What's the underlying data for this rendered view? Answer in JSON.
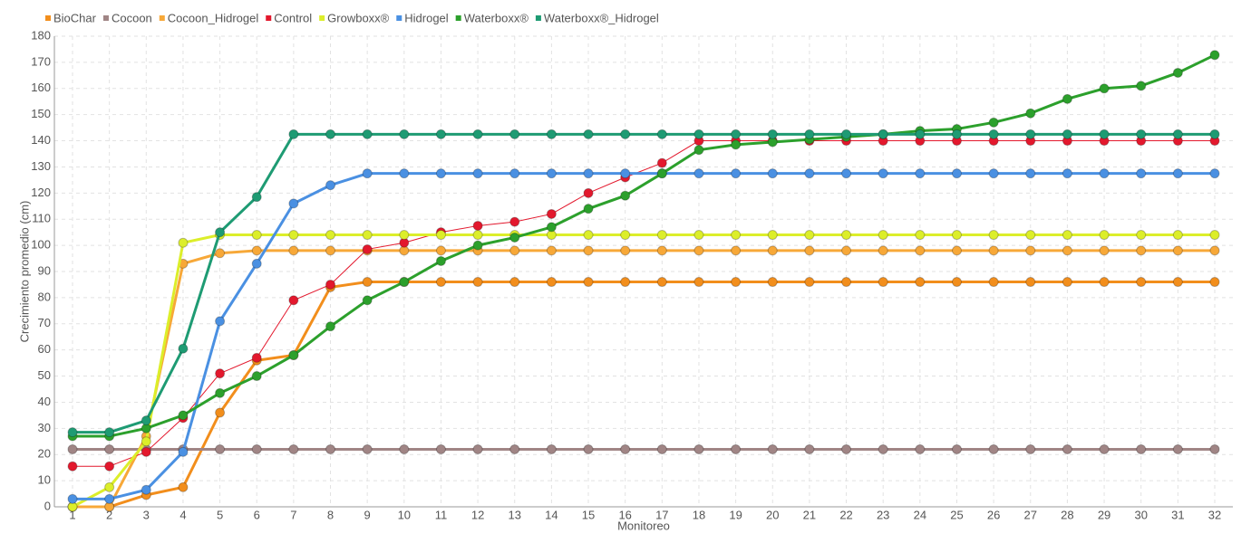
{
  "chart_data": {
    "type": "line",
    "x_label": "Monitoreo",
    "y_label": "Crecimiento promedio (cm)",
    "categories": [
      "1",
      "2",
      "3",
      "4",
      "5",
      "6",
      "7",
      "8",
      "9",
      "10",
      "11",
      "12",
      "13",
      "14",
      "15",
      "16",
      "17",
      "18",
      "19",
      "20",
      "21",
      "22",
      "23",
      "24",
      "25",
      "26",
      "27",
      "28",
      "29",
      "30",
      "31",
      "32"
    ],
    "ylim": [
      0,
      180
    ],
    "yticks": [
      0,
      10,
      20,
      30,
      40,
      50,
      60,
      70,
      80,
      90,
      100,
      110,
      120,
      130,
      140,
      150,
      160,
      170,
      180
    ],
    "grid": true,
    "series": [
      {
        "name": "BioChar",
        "color": "#f28e1c",
        "values": [
          0,
          0,
          4.5,
          7.5,
          36,
          56,
          58,
          84,
          86,
          86,
          86,
          86,
          86,
          86,
          86,
          86,
          86,
          86,
          86,
          86,
          86,
          86,
          86,
          86,
          86,
          86,
          86,
          86,
          86,
          86,
          86,
          86
        ]
      },
      {
        "name": "Cocoon",
        "color": "#a08585",
        "values": [
          22,
          22,
          22,
          22,
          22,
          22,
          22,
          22,
          22,
          22,
          22,
          22,
          22,
          22,
          22,
          22,
          22,
          22,
          22,
          22,
          22,
          22,
          22,
          22,
          22,
          22,
          22,
          22,
          22,
          22,
          22,
          22
        ]
      },
      {
        "name": "Cocoon_Hidrogel",
        "color": "#f7a838",
        "values": [
          0,
          0,
          27,
          93,
          97,
          98,
          98,
          98,
          98,
          98,
          98,
          98,
          98,
          98,
          98,
          98,
          98,
          98,
          98,
          98,
          98,
          98,
          98,
          98,
          98,
          98,
          98,
          98,
          98,
          98,
          98,
          98
        ]
      },
      {
        "name": "Control",
        "color": "#e3182d",
        "values": [
          15.5,
          15.5,
          21,
          34,
          51,
          57,
          79,
          85,
          98.5,
          101,
          105,
          107.5,
          109,
          112,
          120,
          126,
          131.5,
          140,
          140,
          140,
          140,
          140,
          140,
          140,
          140,
          140,
          140,
          140,
          140,
          140,
          140,
          140
        ]
      },
      {
        "name": "Growboxx®",
        "color": "#dcee2a",
        "values": [
          0,
          7.5,
          25,
          101,
          104,
          104,
          104,
          104,
          104,
          104,
          104,
          104,
          104,
          104,
          104,
          104,
          104,
          104,
          104,
          104,
          104,
          104,
          104,
          104,
          104,
          104,
          104,
          104,
          104,
          104,
          104,
          104
        ]
      },
      {
        "name": "Hidrogel",
        "color": "#4a90e2",
        "values": [
          3,
          3,
          6.5,
          21,
          71,
          93,
          116,
          123,
          127.5,
          127.5,
          127.5,
          127.5,
          127.5,
          127.5,
          127.5,
          127.5,
          127.5,
          127.5,
          127.5,
          127.5,
          127.5,
          127.5,
          127.5,
          127.5,
          127.5,
          127.5,
          127.5,
          127.5,
          127.5,
          127.5,
          127.5,
          127.5
        ]
      },
      {
        "name": "Waterboxx®",
        "color": "#2ca02c",
        "values": [
          27,
          27,
          30,
          35,
          43.5,
          50,
          58,
          69,
          79,
          86,
          94,
          100,
          103,
          107,
          114,
          119,
          127.5,
          136.5,
          138.5,
          139.5,
          140.5,
          141.5,
          142.5,
          143.8,
          144.5,
          147,
          150.5,
          156,
          160,
          161,
          166,
          172.8
        ]
      },
      {
        "name": "Waterboxx®_Hidrogel",
        "color": "#1e9b73",
        "values": [
          28.5,
          28.5,
          33,
          60.5,
          105,
          118.5,
          142.5,
          142.5,
          142.5,
          142.5,
          142.5,
          142.5,
          142.5,
          142.5,
          142.5,
          142.5,
          142.5,
          142.5,
          142.5,
          142.5,
          142.5,
          142.5,
          142.5,
          142.5,
          142.5,
          142.5,
          142.5,
          142.5,
          142.5,
          142.5,
          142.5,
          142.5
        ]
      }
    ]
  }
}
